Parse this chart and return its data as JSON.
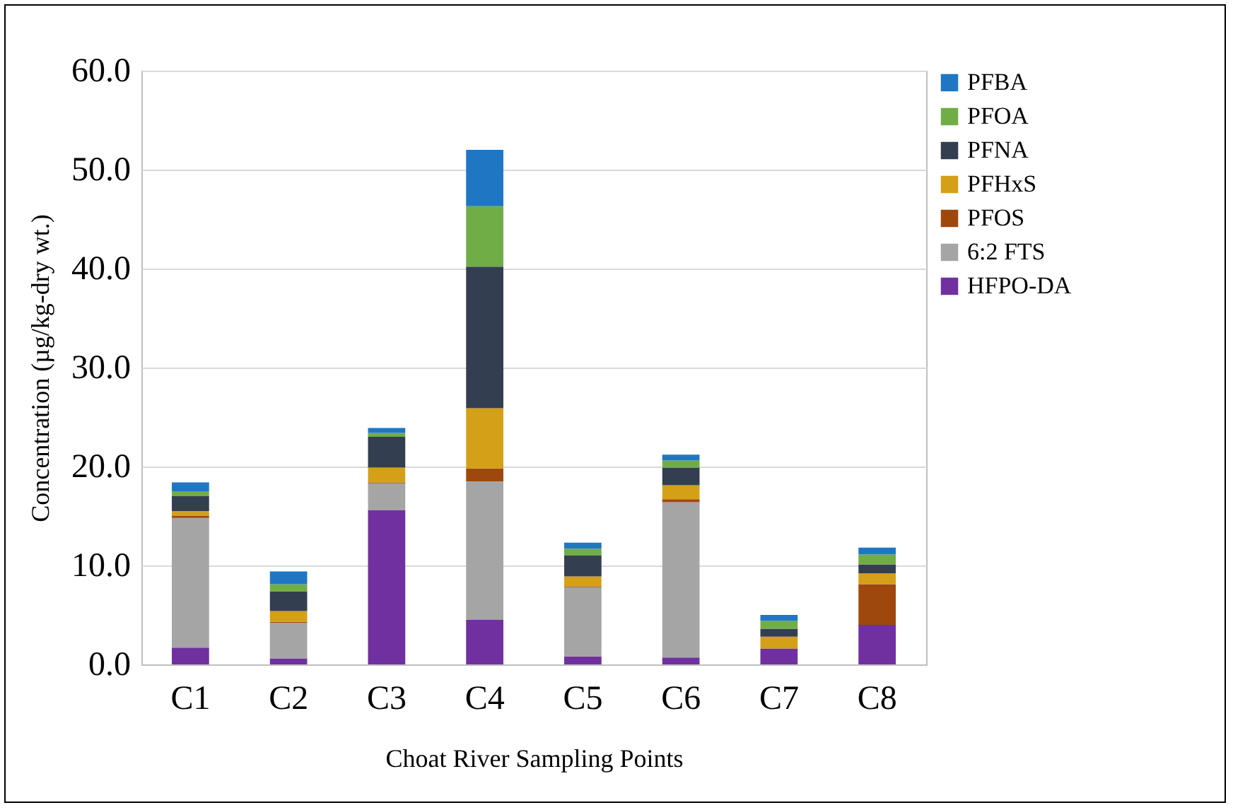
{
  "chart_data": {
    "type": "bar",
    "stacked": true,
    "xlabel": "Choat River Sampling Points",
    "ylabel": "Concentration (µg/kg-dry wt.)",
    "categories": [
      "C1",
      "C2",
      "C3",
      "C4",
      "C5",
      "C6",
      "C7",
      "C8"
    ],
    "series": [
      {
        "name": "HFPO-DA",
        "color": "#7030a0",
        "values": [
          1.7,
          0.6,
          15.6,
          4.5,
          0.8,
          0.7,
          1.6,
          4.0
        ]
      },
      {
        "name": "6:2 FTS",
        "color": "#a5a5a5",
        "values": [
          13.1,
          3.6,
          2.7,
          14.0,
          7.0,
          15.7,
          null,
          null
        ]
      },
      {
        "name": "PFOS",
        "color": "#9e480e",
        "values": [
          0.2,
          0.1,
          0.1,
          1.3,
          0.1,
          0.3,
          0,
          4.1
        ]
      },
      {
        "name": "PFHxS",
        "color": "#d4a017",
        "values": [
          0.5,
          1.1,
          1.5,
          6.1,
          1.0,
          1.4,
          1.2,
          1.1
        ]
      },
      {
        "name": "PFNA",
        "color": "#333f50",
        "values": [
          1.5,
          2.0,
          3.1,
          14.3,
          2.1,
          1.8,
          0.8,
          0.9
        ]
      },
      {
        "name": "PFOA",
        "color": "#70ad47",
        "values": [
          0.5,
          0.7,
          0.4,
          6.1,
          0.7,
          0.7,
          0.8,
          1.0
        ]
      },
      {
        "name": "PFBA",
        "color": "#1f77c4",
        "values": [
          0.9,
          1.3,
          0.5,
          5.7,
          0.6,
          0.6,
          0.6,
          0.7
        ]
      }
    ],
    "ylim": [
      0,
      60
    ],
    "yticks": [
      {
        "value": 0,
        "label": "0.0"
      },
      {
        "value": 10,
        "label": "10.0"
      },
      {
        "value": 20,
        "label": "20.0"
      },
      {
        "value": 30,
        "label": "30.0"
      },
      {
        "value": 40,
        "label": "40.0"
      },
      {
        "value": 50,
        "label": "50.0"
      },
      {
        "value": 60,
        "label": "60.0"
      }
    ],
    "grid": "y",
    "legend": "right"
  }
}
